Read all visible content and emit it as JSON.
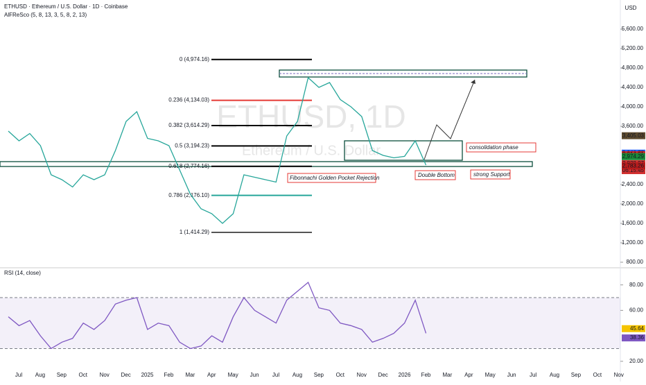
{
  "chart_data": [
    {
      "type": "line",
      "title": "ETHUSD · Ethereum / U.S. Dollar · 1D · Coinbase",
      "indicator": "AlFReSco (5, 8, 13, 3, 5, 8, 2, 13)",
      "watermark": "ETHUSD, 1D",
      "watermark_sub": "Ethereum / U.S. Dollar",
      "currency": "USD",
      "color": "#26a69a",
      "values": [
        3500,
        3300,
        3450,
        3200,
        2600,
        2500,
        2350,
        2600,
        2500,
        2600,
        3100,
        3700,
        3900,
        3350,
        3300,
        3200,
        2700,
        2200,
        1900,
        1800,
        1600,
        1800,
        2600,
        2550,
        2500,
        2450,
        3400,
        3700,
        4600,
        4400,
        4500,
        4150,
        4000,
        3800,
        3100,
        3000,
        2950,
        2980,
        3300,
        2800
      ],
      "ylim": [
        700,
        6200
      ],
      "yticks": [
        {
          "value": 800,
          "label": "800.00"
        },
        {
          "value": 1200,
          "label": "1,200.00"
        },
        {
          "value": 1600,
          "label": "1,600.00"
        },
        {
          "value": 2000,
          "label": "2,000.00"
        },
        {
          "value": 2400,
          "label": "2,400.00"
        },
        {
          "value": 3600,
          "label": "3,600.00"
        },
        {
          "value": 4000,
          "label": "4,000.00"
        },
        {
          "value": 4400,
          "label": "4,400.00"
        },
        {
          "value": 4800,
          "label": "4,800.00"
        },
        {
          "value": 5200,
          "label": "5,200.00"
        },
        {
          "value": 5600,
          "label": "5,600.00"
        }
      ],
      "fib_levels": [
        {
          "label": "0 (4,974.16)",
          "value": 4974.16,
          "color": "#000000"
        },
        {
          "label": "0.236 (4,134.03)",
          "value": 4134.03,
          "color": "#e53935"
        },
        {
          "label": "0.382 (3,614.29)",
          "value": 3614.29,
          "color": "#000000"
        },
        {
          "label": "0.5 (3,194.23)",
          "value": 3194.23,
          "color": "#000000"
        },
        {
          "label": "0.618 (2,774.16)",
          "value": 2774.16,
          "color": "#000000"
        },
        {
          "label": "0.786 (2,176.10)",
          "value": 2176.1,
          "color": "#26a69a"
        },
        {
          "label": "1 (1,414.29)",
          "value": 1414.29,
          "color": "#555555"
        }
      ],
      "price_tags": [
        {
          "value": 3405.03,
          "label": "3,405.03",
          "color": "#5d4a2e"
        },
        {
          "value": 3046.77,
          "label": "3,046.77",
          "color": "#2962ff"
        },
        {
          "value": 3014.91,
          "label": "3,014.91",
          "color": "#c62828"
        },
        {
          "value": 2974.29,
          "label": "2,974.29",
          "color": "#1b8a3a"
        },
        {
          "value": 2828.97,
          "label": "2,828.97",
          "color": "#d32f2f"
        },
        {
          "value": 2783.26,
          "label": "2,783.26",
          "color": "#b71c1c"
        }
      ],
      "countdown": "06:15:45",
      "annotations": [
        "consolidation phase",
        "strong Support",
        "Double Bottom",
        "Fibonnachi Golden Pocket Rejection"
      ],
      "x_labels": [
        "Jul",
        "Aug",
        "Sep",
        "Oct",
        "Nov",
        "Dec",
        "2025",
        "Feb",
        "Mar",
        "Apr",
        "May",
        "Jun",
        "Jul",
        "Aug",
        "Sep",
        "Oct",
        "Nov",
        "Dec",
        "2026",
        "Feb",
        "Mar",
        "Apr",
        "May",
        "Jun",
        "Jul",
        "Aug",
        "Sep",
        "Oct",
        "Nov"
      ]
    },
    {
      "type": "line",
      "title": "RSI (14, close)",
      "color": "#7e57c2",
      "values": [
        55,
        48,
        52,
        40,
        30,
        35,
        38,
        50,
        45,
        52,
        65,
        68,
        70,
        45,
        50,
        48,
        35,
        30,
        32,
        40,
        35,
        55,
        70,
        60,
        55,
        50,
        68,
        75,
        82,
        62,
        60,
        50,
        48,
        45,
        35,
        38,
        42,
        50,
        68,
        42
      ],
      "ylim": [
        15,
        94
      ],
      "yticks": [
        {
          "value": 20,
          "label": "20.00"
        },
        {
          "value": 60,
          "label": "60.00"
        },
        {
          "value": 80,
          "label": "80.00"
        }
      ],
      "bands": [
        30,
        70
      ],
      "price_tags": [
        {
          "value": 45.64,
          "label": "45.64",
          "color": "#f5c400"
        },
        {
          "value": 38.36,
          "label": "38.36",
          "color": "#7e57c2"
        }
      ]
    }
  ]
}
